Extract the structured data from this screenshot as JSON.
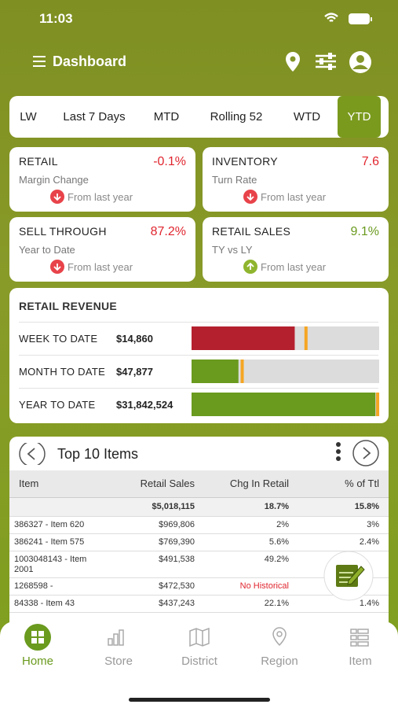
{
  "status_bar": {
    "time": "11:03"
  },
  "header": {
    "title": "Dashboard"
  },
  "tabs": [
    "LW",
    "Last 7 Days",
    "MTD",
    "Rolling 52",
    "WTD",
    "YTD"
  ],
  "kpis": [
    {
      "title": "RETAIL",
      "value": "-0.1%",
      "subtitle": "Margin Change",
      "note": "From last year",
      "trend": "down",
      "color": "#e0262f"
    },
    {
      "title": "INVENTORY",
      "value": "7.6",
      "subtitle": "Turn Rate",
      "note": "From last year",
      "trend": "down",
      "color": "#e0262f"
    },
    {
      "title": "SELL THROUGH",
      "value": "87.2%",
      "subtitle": "Year to Date",
      "note": "From last year",
      "trend": "down",
      "color": "#e0262f"
    },
    {
      "title": "RETAIL SALES",
      "value": "9.1%",
      "subtitle": "TY vs LY",
      "note": "From last year",
      "trend": "up",
      "color": "#6a9a1e"
    }
  ],
  "revenue": {
    "title": "RETAIL REVENUE",
    "rows": [
      {
        "label": "WEEK TO DATE",
        "value": "$14,860",
        "progress": 55,
        "marker": 61,
        "color": "#b5202e"
      },
      {
        "label": "MONTH TO DATE",
        "value": "$47,877",
        "progress": 25,
        "marker": 27,
        "color": "#6a9a1e"
      },
      {
        "label": "YEAR TO DATE",
        "value": "$31,842,524",
        "progress": 98,
        "marker": 99.2,
        "color": "#6a9a1e"
      }
    ]
  },
  "top_items": {
    "title": "Top 10 Items",
    "columns": [
      "Item",
      "Retail Sales",
      "Chg In Retail",
      "% of Ttl"
    ],
    "total": {
      "sales": "$5,018,115",
      "change": "18.7%",
      "share": "15.8%"
    },
    "rows": [
      [
        "386327 - Item 620",
        "$969,806",
        "2%",
        "3%"
      ],
      [
        "386241 - Item 575",
        "$769,390",
        "5.6%",
        "2.4%"
      ],
      [
        "1003048143 - Item 2001",
        "$491,538",
        "49.2%",
        null
      ],
      [
        "1268598 -",
        "$472,530",
        "No Historical",
        null
      ],
      [
        "84338 - Item 43",
        "$437,243",
        "22.1%",
        "1.4%"
      ]
    ]
  },
  "nav": [
    "Home",
    "Store",
    "District",
    "Region",
    "Item"
  ]
}
